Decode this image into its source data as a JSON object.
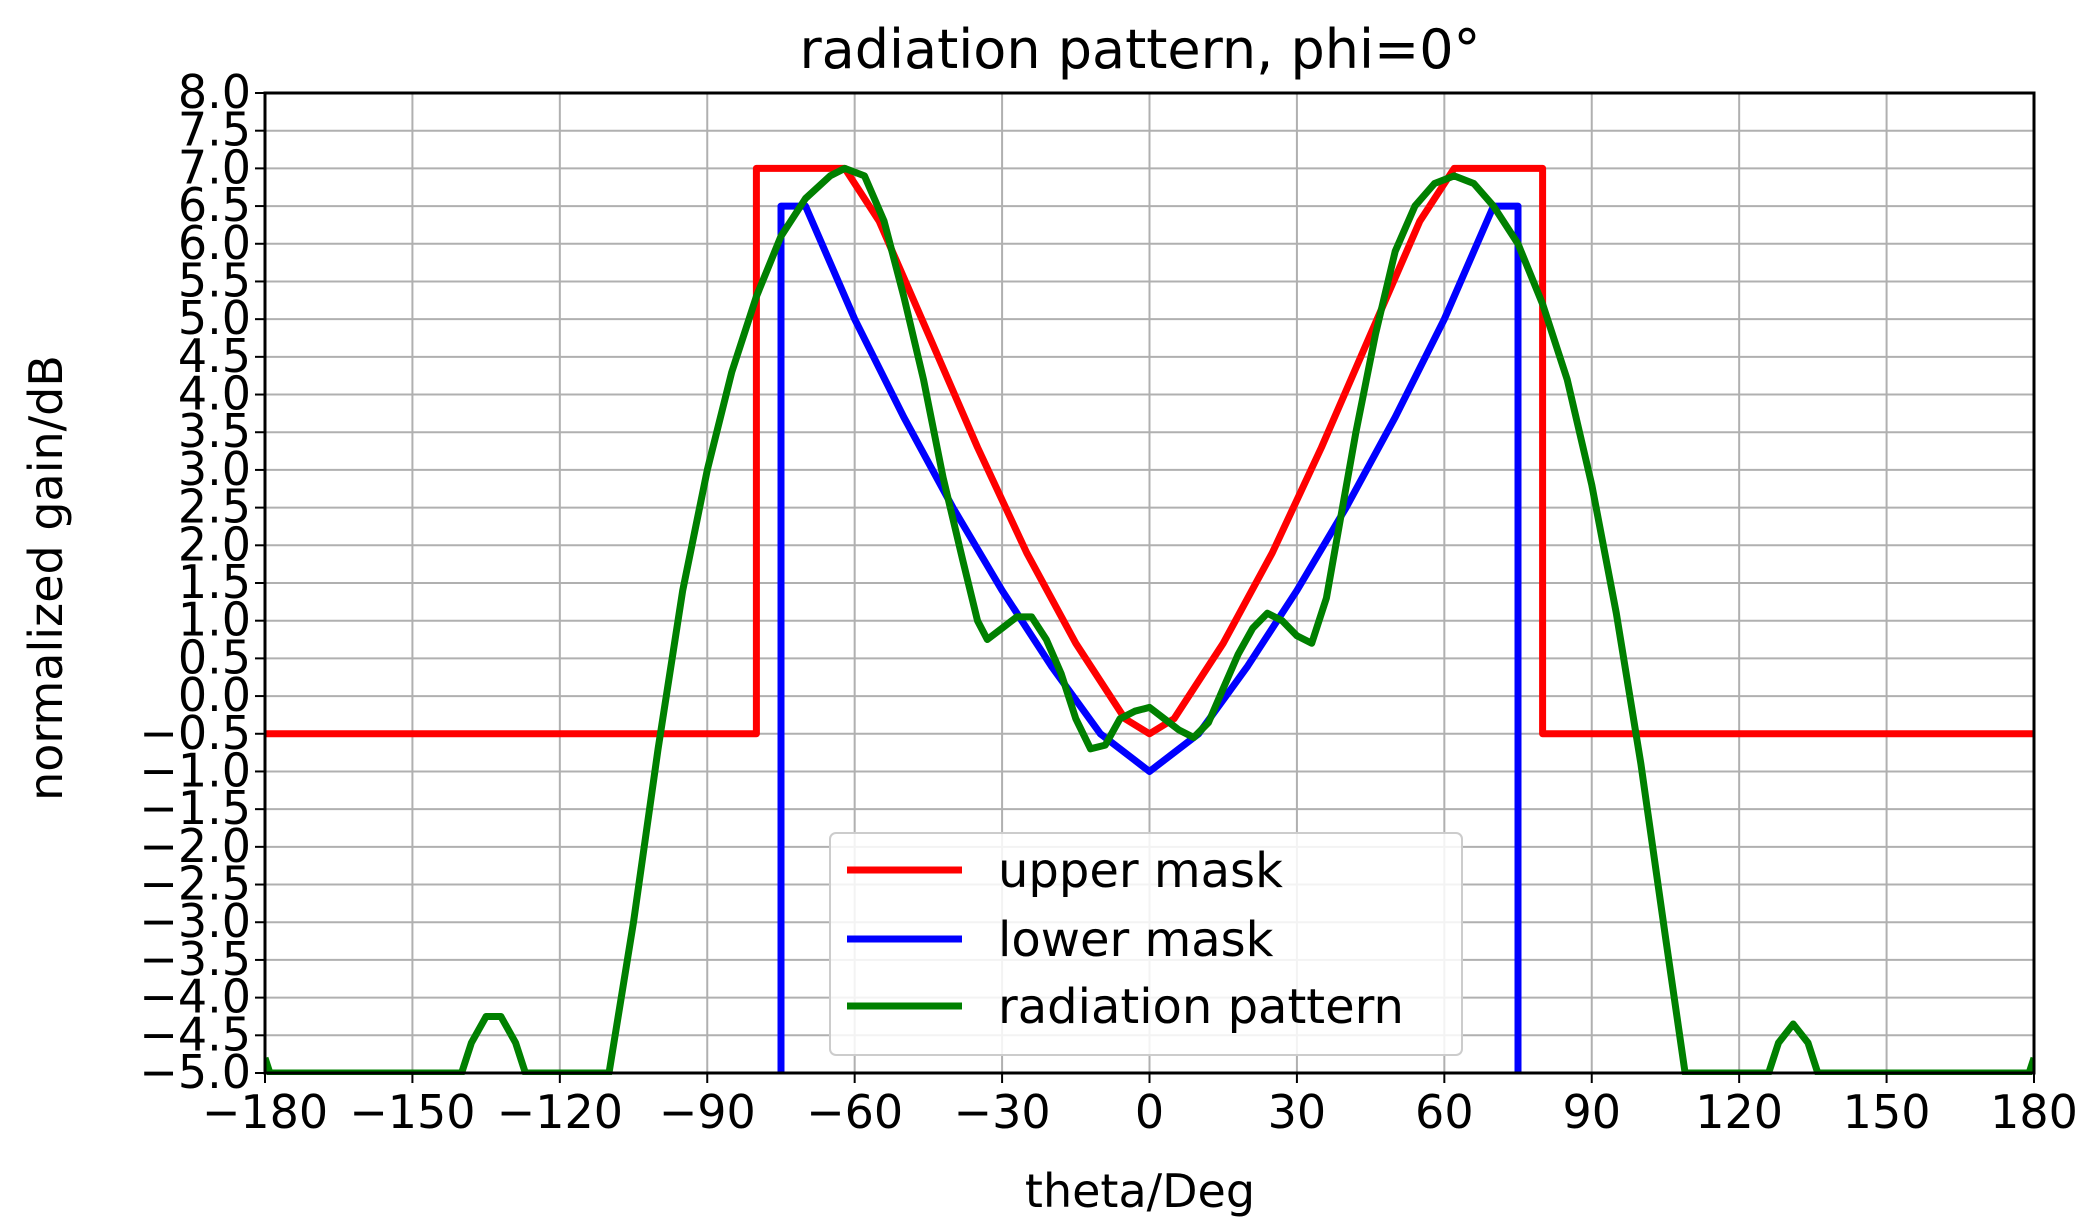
{
  "chart_data": {
    "type": "line",
    "title": "radiation pattern, phi=0°",
    "xlabel": "theta/Deg",
    "ylabel": "normalized gain/dB",
    "xlim": [
      -180,
      180
    ],
    "ylim": [
      -5.0,
      8.0
    ],
    "grid": true,
    "legend_position": "lower-center",
    "x_ticks": [
      -180,
      -150,
      -120,
      -90,
      -60,
      -30,
      0,
      30,
      60,
      90,
      120,
      150,
      180
    ],
    "x_tick_labels": [
      "−180",
      "−150",
      "−120",
      "−90",
      "−60",
      "−30",
      "0",
      "30",
      "60",
      "90",
      "120",
      "150",
      "180"
    ],
    "y_ticks": [
      -5.0,
      -4.5,
      -4.0,
      -3.5,
      -3.0,
      -2.5,
      -2.0,
      -1.5,
      -1.0,
      -0.5,
      0.0,
      0.5,
      1.0,
      1.5,
      2.0,
      2.5,
      3.0,
      3.5,
      4.0,
      4.5,
      5.0,
      5.5,
      6.0,
      6.5,
      7.0,
      7.5,
      8.0
    ],
    "y_tick_labels": [
      "−5.0",
      "−4.5",
      "−4.0",
      "−3.5",
      "−3.0",
      "−2.5",
      "−2.0",
      "−1.5",
      "−1.0",
      "−0.5",
      "0.0",
      "0.5",
      "1.0",
      "1.5",
      "2.0",
      "2.5",
      "3.0",
      "3.5",
      "4.0",
      "4.5",
      "5.0",
      "5.5",
      "6.0",
      "6.5",
      "7.0",
      "7.5",
      "8.0"
    ],
    "series": [
      {
        "name": "upper mask",
        "color": "#ff0000",
        "points": [
          [
            -180,
            -0.5
          ],
          [
            -80,
            -0.5
          ],
          [
            -80,
            7.0
          ],
          [
            -62,
            7.0
          ],
          [
            -55,
            6.3
          ],
          [
            -45,
            4.8
          ],
          [
            -35,
            3.3
          ],
          [
            -25,
            1.9
          ],
          [
            -15,
            0.7
          ],
          [
            -5,
            -0.3
          ],
          [
            0,
            -0.5
          ],
          [
            5,
            -0.3
          ],
          [
            15,
            0.7
          ],
          [
            25,
            1.9
          ],
          [
            35,
            3.3
          ],
          [
            45,
            4.8
          ],
          [
            55,
            6.3
          ],
          [
            62,
            7.0
          ],
          [
            80,
            7.0
          ],
          [
            80,
            -0.5
          ],
          [
            180,
            -0.5
          ]
        ]
      },
      {
        "name": "lower mask",
        "color": "#0000ff",
        "points": [
          [
            -75,
            -5.0
          ],
          [
            -75,
            6.5
          ],
          [
            -70,
            6.5
          ],
          [
            -60,
            5.0
          ],
          [
            -50,
            3.7
          ],
          [
            -40,
            2.5
          ],
          [
            -30,
            1.4
          ],
          [
            -20,
            0.4
          ],
          [
            -10,
            -0.5
          ],
          [
            0,
            -1.0
          ],
          [
            10,
            -0.5
          ],
          [
            20,
            0.4
          ],
          [
            30,
            1.4
          ],
          [
            40,
            2.5
          ],
          [
            50,
            3.7
          ],
          [
            60,
            5.0
          ],
          [
            70,
            6.5
          ],
          [
            75,
            6.5
          ],
          [
            75,
            -5.0
          ]
        ]
      },
      {
        "name": "radiation pattern",
        "color": "#008000",
        "points": [
          [
            -180,
            -4.8
          ],
          [
            -179,
            -5.0
          ],
          [
            -140,
            -5.0
          ],
          [
            -138,
            -4.6
          ],
          [
            -135,
            -4.25
          ],
          [
            -132,
            -4.25
          ],
          [
            -129,
            -4.6
          ],
          [
            -127,
            -5.0
          ],
          [
            -110,
            -5.0
          ],
          [
            -105,
            -3.0
          ],
          [
            -100,
            -0.7
          ],
          [
            -95,
            1.4
          ],
          [
            -90,
            3.0
          ],
          [
            -85,
            4.3
          ],
          [
            -80,
            5.3
          ],
          [
            -75,
            6.1
          ],
          [
            -70,
            6.6
          ],
          [
            -65,
            6.9
          ],
          [
            -62,
            7.0
          ],
          [
            -58,
            6.9
          ],
          [
            -54,
            6.3
          ],
          [
            -50,
            5.3
          ],
          [
            -46,
            4.2
          ],
          [
            -42,
            2.9
          ],
          [
            -38,
            1.8
          ],
          [
            -35,
            1.0
          ],
          [
            -33,
            0.75
          ],
          [
            -30,
            0.9
          ],
          [
            -27,
            1.05
          ],
          [
            -24,
            1.05
          ],
          [
            -21,
            0.75
          ],
          [
            -18,
            0.3
          ],
          [
            -15,
            -0.3
          ],
          [
            -12,
            -0.7
          ],
          [
            -9,
            -0.65
          ],
          [
            -6,
            -0.3
          ],
          [
            -3,
            -0.2
          ],
          [
            0,
            -0.15
          ],
          [
            3,
            -0.3
          ],
          [
            6,
            -0.45
          ],
          [
            9,
            -0.55
          ],
          [
            12,
            -0.35
          ],
          [
            15,
            0.1
          ],
          [
            18,
            0.55
          ],
          [
            21,
            0.9
          ],
          [
            24,
            1.1
          ],
          [
            27,
            1.0
          ],
          [
            30,
            0.8
          ],
          [
            33,
            0.7
          ],
          [
            36,
            1.3
          ],
          [
            39,
            2.4
          ],
          [
            42,
            3.5
          ],
          [
            46,
            4.8
          ],
          [
            50,
            5.9
          ],
          [
            54,
            6.5
          ],
          [
            58,
            6.8
          ],
          [
            62,
            6.9
          ],
          [
            66,
            6.8
          ],
          [
            70,
            6.5
          ],
          [
            75,
            6.0
          ],
          [
            80,
            5.2
          ],
          [
            85,
            4.2
          ],
          [
            90,
            2.8
          ],
          [
            95,
            1.1
          ],
          [
            100,
            -0.9
          ],
          [
            105,
            -3.2
          ],
          [
            109,
            -5.0
          ],
          [
            126,
            -5.0
          ],
          [
            128,
            -4.6
          ],
          [
            131,
            -4.35
          ],
          [
            134,
            -4.6
          ],
          [
            136,
            -5.0
          ],
          [
            179,
            -5.0
          ],
          [
            180,
            -4.8
          ]
        ]
      }
    ]
  }
}
